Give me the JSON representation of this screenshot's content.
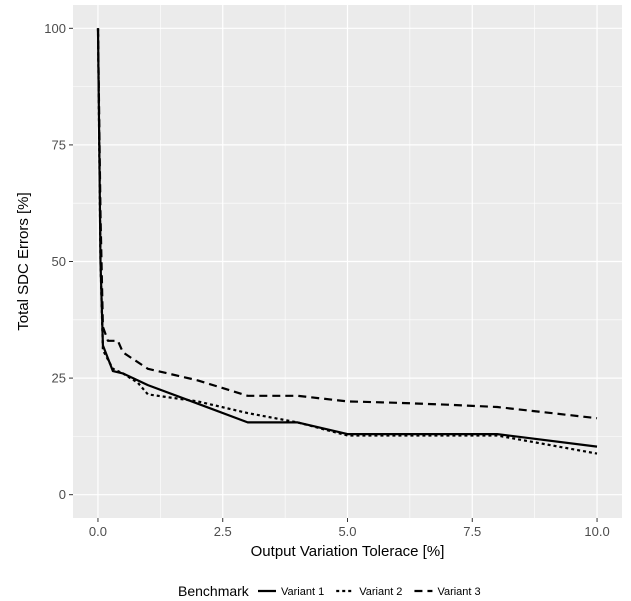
{
  "chart_data": {
    "type": "line",
    "xlabel": "Output Variation Tolerace [%]",
    "ylabel": "Total SDC Errors [%]",
    "xlim": [
      -0.5,
      10.5
    ],
    "ylim": [
      -5,
      105
    ],
    "x_ticks": [
      0,
      2.5,
      5,
      7.5,
      10
    ],
    "x_tick_labels": [
      "0.0",
      "2.5",
      "5.0",
      "7.5",
      "10.0"
    ],
    "y_ticks": [
      0,
      25,
      50,
      75,
      100
    ],
    "y_tick_labels": [
      "0",
      "25",
      "50",
      "75",
      "100"
    ],
    "grid": true,
    "background": "#ebebeb",
    "legend": {
      "title": "Benchmark",
      "position": "bottom"
    },
    "series": [
      {
        "name": "Variant 1",
        "linetype": "solid",
        "x": [
          0,
          0.05,
          0.1,
          0.3,
          0.5,
          1,
          2,
          3,
          4,
          5,
          6,
          7,
          8,
          10
        ],
        "y": [
          100,
          50,
          32,
          26.5,
          26,
          23.5,
          19.5,
          15.5,
          15.5,
          13,
          13,
          13,
          13,
          10.3
        ]
      },
      {
        "name": "Variant 2",
        "linetype": "dotted",
        "x": [
          0,
          0.05,
          0.1,
          0.3,
          0.5,
          0.8,
          1,
          2,
          3,
          4,
          5,
          6,
          7,
          8,
          10
        ],
        "y": [
          100,
          50,
          31,
          27,
          26,
          24,
          21.5,
          20,
          17.5,
          15.5,
          12.7,
          12.7,
          12.7,
          12.7,
          8.8
        ]
      },
      {
        "name": "Variant 3",
        "linetype": "dashed",
        "x": [
          0,
          0.05,
          0.1,
          0.2,
          0.4,
          0.5,
          1,
          2,
          3,
          4,
          5,
          6,
          7,
          8,
          10
        ],
        "y": [
          100,
          60,
          36,
          33,
          33,
          30.5,
          27,
          24.5,
          21.2,
          21.2,
          20,
          19.7,
          19.3,
          18.8,
          16.4
        ]
      }
    ]
  }
}
